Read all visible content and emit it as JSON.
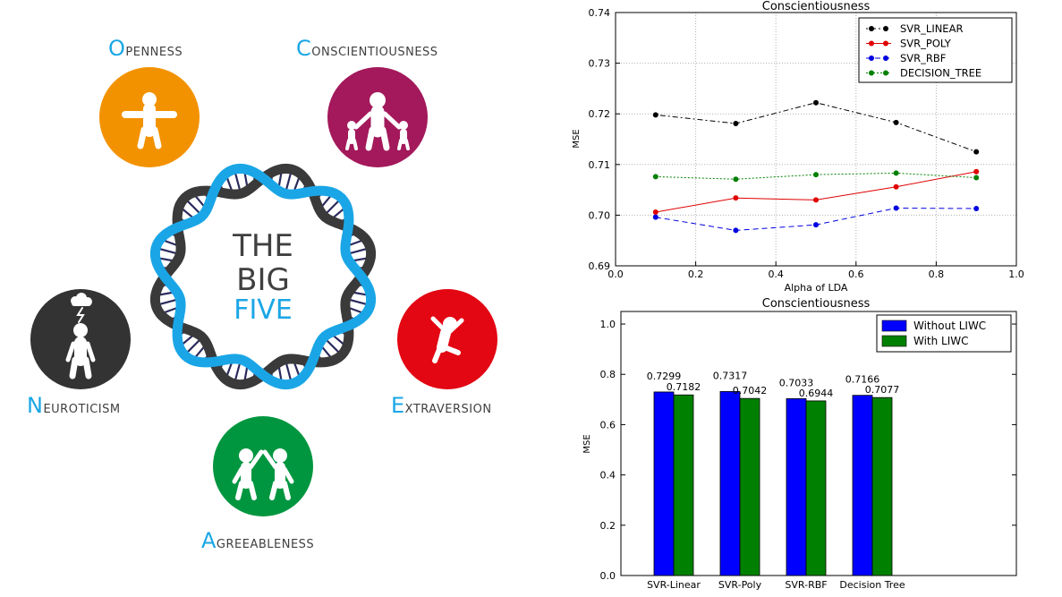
{
  "infographic": {
    "center_text": [
      "THE",
      "BIG",
      "FIVE"
    ],
    "colors": {
      "helix_blue": "#1aa6e6",
      "helix_dark": "#3a3a3a",
      "rung": "#2a2a5e",
      "accent": "#1aa6e6",
      "text": "#404040"
    },
    "traits": [
      {
        "key": "openness",
        "first": "O",
        "rest": "PENNESS",
        "color": "#f39200",
        "icon": "person-arms-out-icon"
      },
      {
        "key": "conscientiousness",
        "first": "C",
        "rest": "ONSCIENTIOUSNESS",
        "color": "#a3195b",
        "icon": "parent-with-children-icon"
      },
      {
        "key": "extraversion",
        "first": "E",
        "rest": "XTRAVERSION",
        "color": "#e30613",
        "icon": "jumping-person-icon"
      },
      {
        "key": "agreeableness",
        "first": "A",
        "rest": "GREEABLENESS",
        "color": "#009640",
        "icon": "two-people-high-five-icon"
      },
      {
        "key": "neuroticism",
        "first": "N",
        "rest": "EUROTICISM",
        "color": "#333333",
        "icon": "person-storm-cloud-icon"
      }
    ]
  },
  "chart_data": [
    {
      "type": "line",
      "title": "Conscientiousness",
      "xlabel": "Alpha of LDA",
      "ylabel": "MSE",
      "xlim": [
        0.0,
        1.0
      ],
      "ylim": [
        0.69,
        0.74
      ],
      "xticks": [
        "0.0",
        "0.2",
        "0.4",
        "0.6",
        "0.8",
        "1.0"
      ],
      "yticks": [
        "0.69",
        "0.70",
        "0.71",
        "0.72",
        "0.73",
        "0.74"
      ],
      "grid": true,
      "legend_position": "top-right",
      "x": [
        0.1,
        0.3,
        0.5,
        0.7,
        0.9
      ],
      "series": [
        {
          "name": "SVR_LINEAR",
          "color": "#000000",
          "dash": "2,3,6,3",
          "values": [
            0.7198,
            0.7181,
            0.7222,
            0.7183,
            0.7125
          ]
        },
        {
          "name": "SVR_POLY",
          "color": "#e00000",
          "dash": "",
          "values": [
            0.7006,
            0.7034,
            0.703,
            0.7056,
            0.7086
          ]
        },
        {
          "name": "SVR_RBF",
          "color": "#0000e0",
          "dash": "6,4",
          "values": [
            0.6996,
            0.697,
            0.6981,
            0.7014,
            0.7013
          ]
        },
        {
          "name": "DECISION_TREE",
          "color": "#008000",
          "dash": "2,2",
          "values": [
            0.7076,
            0.7071,
            0.708,
            0.7083,
            0.7074
          ]
        }
      ]
    },
    {
      "type": "bar",
      "title": "Conscientiousness",
      "xlabel": "",
      "ylabel": "MSE",
      "ylim": [
        0.0,
        1.05
      ],
      "yticks": [
        "0.0",
        "0.2",
        "0.4",
        "0.6",
        "0.8",
        "1.0"
      ],
      "grid": false,
      "legend_position": "top-right",
      "categories": [
        "SVR-Linear",
        "SVR-Poly",
        "SVR-RBF",
        "Decision Tree"
      ],
      "series": [
        {
          "name": "Without LIWC",
          "color": "#0000ff",
          "values": [
            0.7299,
            0.7317,
            0.7033,
            0.7166
          ],
          "labels": [
            "0.7299",
            "0.7317",
            "0.7033",
            "0.7166"
          ]
        },
        {
          "name": "With LIWC",
          "color": "#008000",
          "values": [
            0.7182,
            0.7042,
            0.6944,
            0.7077
          ],
          "labels": [
            "0.7182",
            "0.7042",
            "0.6944",
            "0.7077"
          ]
        }
      ]
    }
  ]
}
